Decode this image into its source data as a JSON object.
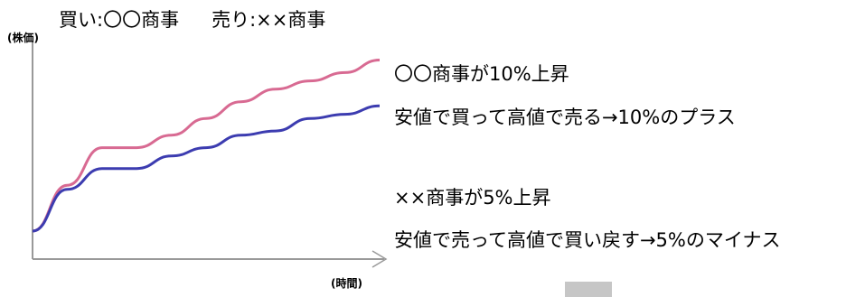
{
  "header": {
    "buy": "買い:〇〇商事",
    "sell": "売り:××商事"
  },
  "axes": {
    "ylabel": "(株価)",
    "xlabel": "(時間)"
  },
  "annotations": {
    "line1": "〇〇商事が10%上昇",
    "line2": "安値で買って高値で売る→10%のプラス",
    "line3": "××商事が5%上昇",
    "line4": "安値で売って高値で買い戻す→5%のマイナス"
  },
  "colors": {
    "pink_series": "#d86a92",
    "blue_series": "#3c3cb0",
    "axis": "#999999"
  },
  "chart_data": {
    "type": "line",
    "xlabel": "(時間)",
    "ylabel": "(株価)",
    "x": [
      0,
      1,
      2,
      3,
      4,
      5,
      6,
      7,
      8,
      9,
      10
    ],
    "series": [
      {
        "name": "〇〇商事",
        "color": "#d86a92",
        "values": [
          0,
          11,
          20,
          20,
          23,
          27,
          31,
          34,
          36,
          38,
          41
        ]
      },
      {
        "name": "××商事",
        "color": "#3c3cb0",
        "values": [
          0,
          10,
          15,
          15,
          18,
          20,
          23,
          24,
          27,
          28,
          30
        ]
      }
    ],
    "xlim": [
      0,
      10
    ],
    "ylim": [
      0,
      45
    ]
  }
}
